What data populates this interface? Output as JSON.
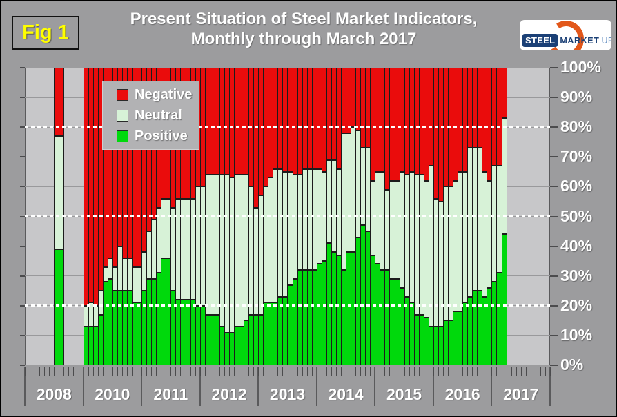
{
  "figure_label": "Fig 1",
  "title": {
    "line1": "Present Situation of Steel Market Indicators,",
    "line2": "Monthly through March 2017"
  },
  "logo": {
    "steel": "STEEL",
    "market": "MARKET",
    "update": "UPDATE"
  },
  "legend": {
    "items": [
      {
        "label": "Negative",
        "color": "#ea0c0c"
      },
      {
        "label": "Neutral",
        "color": "#d7f2d7"
      },
      {
        "label": "Positive",
        "color": "#00d90c"
      }
    ]
  },
  "colors": {
    "negative": "#ea0c0c",
    "neutral": "#d7f2d7",
    "positive": "#00d90c",
    "outline": "#1c1c1c",
    "plot_bg": "#c7c7c9",
    "page_bg": "#9c9c9e",
    "grid": "#99999b",
    "dotted": "#ffffff",
    "tick": "#4b4b4d",
    "fig_label_yellow": "#ffff00",
    "logo_navy": "#1b4076",
    "logo_light_blue": "#6b94c4",
    "logo_orange": "#e2571a"
  },
  "chart_data": {
    "type": "bar",
    "stacked": true,
    "title": "Present Situation of Steel Market Indicators, Monthly through March 2017",
    "xlabel": "",
    "ylabel": "",
    "ylim": [
      0,
      100
    ],
    "grid": true,
    "legend_position": "upper-left",
    "series_names": [
      "Negative",
      "Neutral",
      "Positive"
    ],
    "y_tick_labels": [
      "0%",
      "10%",
      "20%",
      "30%",
      "40%",
      "50%",
      "60%",
      "70%",
      "80%",
      "90%",
      "100%"
    ],
    "grid_percent": [
      10,
      20,
      30,
      40,
      50,
      60,
      70,
      80,
      90
    ],
    "dotted_lines_percent": [
      20,
      50,
      80
    ],
    "x_year_labels": [
      "2008",
      "2010",
      "2011",
      "2012",
      "2013",
      "2014",
      "2015",
      "2016",
      "2017"
    ],
    "months_per_section": 12,
    "note": "Stacked monthly bars, values in percent; 2009 omitted on axis; data gap between Aug 2008 and Jan 2010",
    "bars_columns": [
      "month",
      "positive",
      "neutral",
      "negative"
    ],
    "bars": [
      [
        "2008-07",
        39,
        38,
        23
      ],
      [
        "2008-08",
        39,
        38,
        23
      ],
      [
        "2010-01",
        13,
        7,
        80
      ],
      [
        "2010-02",
        13,
        8,
        79
      ],
      [
        "2010-03",
        13,
        7,
        80
      ],
      [
        "2010-04",
        17,
        8,
        75
      ],
      [
        "2010-05",
        28,
        5,
        67
      ],
      [
        "2010-06",
        29,
        7,
        64
      ],
      [
        "2010-07",
        25,
        8,
        67
      ],
      [
        "2010-08",
        25,
        15,
        60
      ],
      [
        "2010-09",
        25,
        11,
        64
      ],
      [
        "2010-10",
        25,
        11,
        64
      ],
      [
        "2010-11",
        21,
        12,
        67
      ],
      [
        "2010-12",
        21,
        12,
        67
      ],
      [
        "2011-01",
        25,
        13,
        62
      ],
      [
        "2011-02",
        29,
        16,
        55
      ],
      [
        "2011-03",
        29,
        20,
        51
      ],
      [
        "2011-04",
        31,
        22,
        47
      ],
      [
        "2011-05",
        36,
        20,
        44
      ],
      [
        "2011-06",
        36,
        20,
        44
      ],
      [
        "2011-07",
        25,
        28,
        47
      ],
      [
        "2011-08",
        22,
        34,
        44
      ],
      [
        "2011-09",
        22,
        34,
        44
      ],
      [
        "2011-10",
        22,
        34,
        44
      ],
      [
        "2011-11",
        22,
        34,
        44
      ],
      [
        "2011-12",
        20,
        40,
        40
      ],
      [
        "2012-01",
        20,
        40,
        40
      ],
      [
        "2012-02",
        17,
        47,
        36
      ],
      [
        "2012-03",
        17,
        47,
        36
      ],
      [
        "2012-04",
        17,
        47,
        36
      ],
      [
        "2012-05",
        13,
        51,
        36
      ],
      [
        "2012-06",
        11,
        53,
        36
      ],
      [
        "2012-07",
        11,
        52,
        37
      ],
      [
        "2012-08",
        13,
        51,
        36
      ],
      [
        "2012-09",
        13,
        51,
        36
      ],
      [
        "2012-10",
        15,
        49,
        36
      ],
      [
        "2012-11",
        17,
        43,
        40
      ],
      [
        "2012-12",
        17,
        36,
        47
      ],
      [
        "2013-01",
        17,
        40,
        43
      ],
      [
        "2013-02",
        21,
        39,
        40
      ],
      [
        "2013-03",
        21,
        42,
        37
      ],
      [
        "2013-04",
        21,
        45,
        34
      ],
      [
        "2013-05",
        23,
        43,
        34
      ],
      [
        "2013-06",
        23,
        42,
        35
      ],
      [
        "2013-07",
        27,
        38,
        35
      ],
      [
        "2013-08",
        29,
        35,
        36
      ],
      [
        "2013-09",
        32,
        32,
        36
      ],
      [
        "2013-10",
        32,
        34,
        34
      ],
      [
        "2013-11",
        32,
        34,
        34
      ],
      [
        "2013-12",
        32,
        34,
        34
      ],
      [
        "2014-01",
        34,
        32,
        34
      ],
      [
        "2014-02",
        35,
        30,
        35
      ],
      [
        "2014-03",
        41,
        28,
        31
      ],
      [
        "2014-04",
        38,
        31,
        31
      ],
      [
        "2014-05",
        37,
        29,
        34
      ],
      [
        "2014-06",
        32,
        46,
        22
      ],
      [
        "2014-07",
        38,
        40,
        22
      ],
      [
        "2014-08",
        38,
        42,
        20
      ],
      [
        "2014-09",
        43,
        36,
        21
      ],
      [
        "2014-10",
        47,
        26,
        27
      ],
      [
        "2014-11",
        45,
        28,
        27
      ],
      [
        "2014-12",
        37,
        25,
        38
      ],
      [
        "2015-01",
        34,
        31,
        35
      ],
      [
        "2015-02",
        32,
        33,
        35
      ],
      [
        "2015-03",
        32,
        27,
        41
      ],
      [
        "2015-04",
        29,
        33,
        38
      ],
      [
        "2015-05",
        29,
        33,
        38
      ],
      [
        "2015-06",
        26,
        39,
        35
      ],
      [
        "2015-07",
        23,
        41,
        36
      ],
      [
        "2015-08",
        21,
        44,
        35
      ],
      [
        "2015-09",
        17,
        47,
        36
      ],
      [
        "2015-10",
        17,
        47,
        36
      ],
      [
        "2015-11",
        16,
        46,
        38
      ],
      [
        "2015-12",
        13,
        54,
        33
      ],
      [
        "2016-01",
        13,
        43,
        44
      ],
      [
        "2016-02",
        13,
        42,
        45
      ],
      [
        "2016-03",
        15,
        45,
        40
      ],
      [
        "2016-04",
        15,
        45,
        40
      ],
      [
        "2016-05",
        18,
        44,
        38
      ],
      [
        "2016-06",
        18,
        47,
        35
      ],
      [
        "2016-07",
        21,
        44,
        35
      ],
      [
        "2016-08",
        23,
        50,
        27
      ],
      [
        "2016-09",
        25,
        48,
        27
      ],
      [
        "2016-10",
        25,
        48,
        27
      ],
      [
        "2016-11",
        23,
        42,
        35
      ],
      [
        "2016-12",
        26,
        36,
        38
      ],
      [
        "2017-01",
        28,
        39,
        33
      ],
      [
        "2017-02",
        31,
        36,
        33
      ],
      [
        "2017-03",
        44,
        39,
        17
      ]
    ]
  }
}
